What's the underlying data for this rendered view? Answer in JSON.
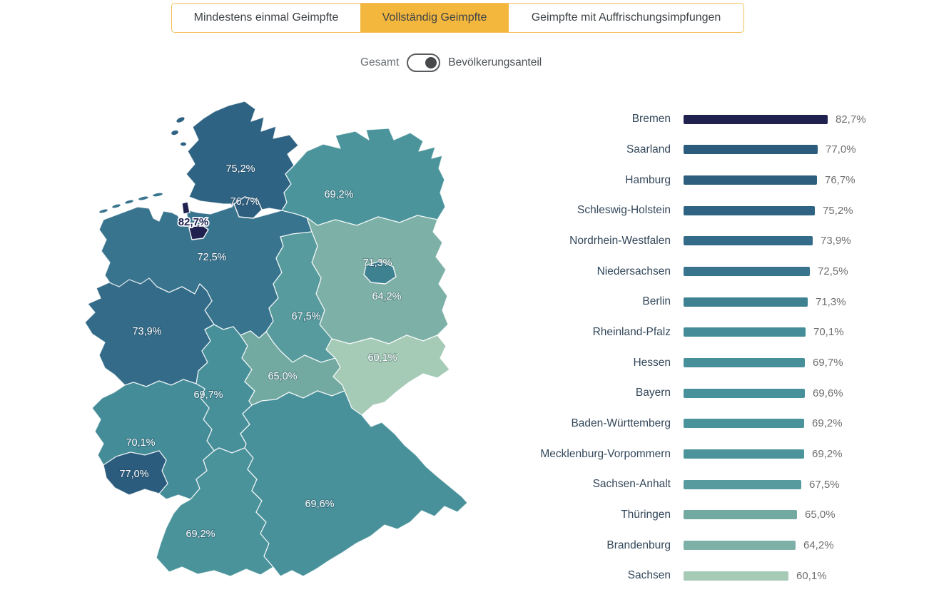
{
  "tabs": {
    "items": [
      {
        "label": "Mindestens einmal Geimpfte",
        "selected": false
      },
      {
        "label": "Vollständig Geimpfte",
        "selected": true
      },
      {
        "label": "Geimpfte mit Auffrischungsimpfungen",
        "selected": false
      }
    ]
  },
  "toggle": {
    "left_label": "Gesamt",
    "right_label": "Bevölkerungsanteil",
    "position": "right"
  },
  "colors": {
    "accent": "#f4b73e",
    "accent_border": "#f3c05a",
    "bar_label_text": "#33475a",
    "bar_value_text": "#6f6f6f",
    "map_border": "#ffffff",
    "bremen_label_text": "#1d2150"
  },
  "chart_data": {
    "type": "bar",
    "orientation": "horizontal",
    "unit": "%",
    "xlim": [
      0,
      85
    ],
    "legend": "none",
    "grid": false,
    "categories": [
      "Bremen",
      "Saarland",
      "Hamburg",
      "Schleswig-Holstein",
      "Nordrhein-Westfalen",
      "Niedersachsen",
      "Berlin",
      "Rheinland-Pfalz",
      "Hessen",
      "Bayern",
      "Baden-Württemberg",
      "Mecklenburg-Vorpommern",
      "Sachsen-Anhalt",
      "Thüringen",
      "Brandenburg",
      "Sachsen"
    ],
    "ids": [
      "HB",
      "SL",
      "HH",
      "SH",
      "NW",
      "NI",
      "BE",
      "RP",
      "HE",
      "BY",
      "BW",
      "MV",
      "ST",
      "TH",
      "BB",
      "SN"
    ],
    "values": [
      82.7,
      77.0,
      76.7,
      75.2,
      73.9,
      72.5,
      71.3,
      70.1,
      69.7,
      69.6,
      69.2,
      69.2,
      67.5,
      65.0,
      64.2,
      60.1
    ],
    "value_labels": [
      "82,7%",
      "77,0%",
      "76,7%",
      "75,2%",
      "73,9%",
      "72,5%",
      "71,3%",
      "70,1%",
      "69,7%",
      "69,6%",
      "69,2%",
      "69,2%",
      "67,5%",
      "65,0%",
      "64,2%",
      "60,1%"
    ],
    "bar_colors": [
      "#20214f",
      "#2b5c7d",
      "#2d5e7e",
      "#2f6383",
      "#336b88",
      "#38748e",
      "#3e8291",
      "#448c97",
      "#47909a",
      "#48919a",
      "#4a939b",
      "#4b949b",
      "#579b9e",
      "#72a9a1",
      "#7db0a7",
      "#a5cab6"
    ]
  }
}
